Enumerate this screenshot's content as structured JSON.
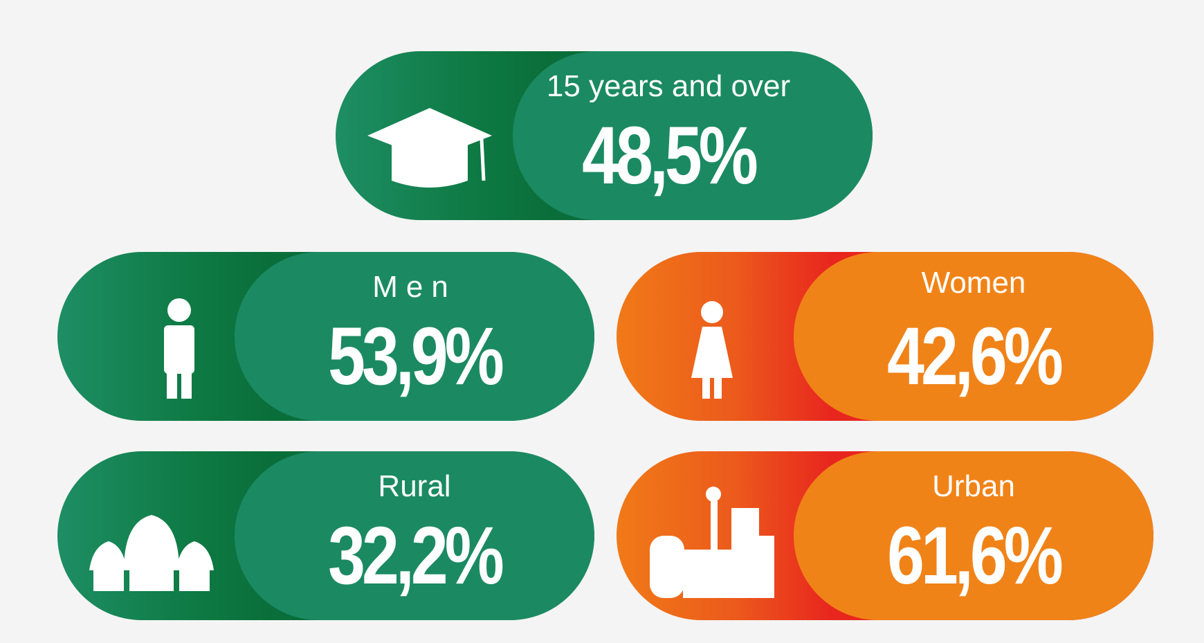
{
  "cards": [
    {
      "label": "15 years and over",
      "value": "48,5%"
    },
    {
      "label": "Men",
      "value": "53,9%"
    },
    {
      "label": "Women",
      "value": "42,6%"
    },
    {
      "label": "Rural",
      "value": "32,2%"
    },
    {
      "label": "Urban",
      "value": "61,6%"
    }
  ]
}
